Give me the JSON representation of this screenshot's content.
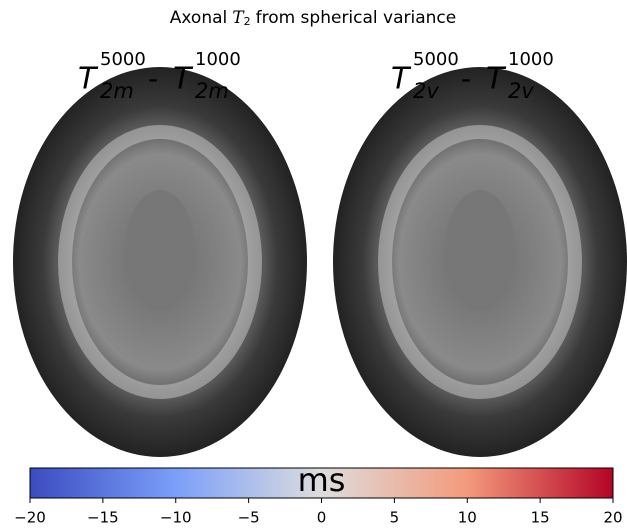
{
  "chart_data": {
    "type": "colorbar",
    "title": {
      "prefix": "Axonal",
      "symbol": "T",
      "subscript": "2",
      "suffix": "from spherical variance"
    },
    "panels": [
      {
        "terms": [
          {
            "base": "T",
            "sub": "2m",
            "sup": "5000"
          },
          {
            "base": "T",
            "sub": "2m",
            "sup": "1000"
          }
        ],
        "operator": "-"
      },
      {
        "terms": [
          {
            "base": "T",
            "sub": "2v",
            "sup": "5000"
          },
          {
            "base": "T",
            "sub": "2v",
            "sup": "1000"
          }
        ],
        "operator": "-"
      }
    ],
    "colorbar": {
      "label": "ms",
      "colormap": [
        "#3b4cc0",
        "#7b9ff9",
        "#dddddd",
        "#f49a7b",
        "#b40426"
      ],
      "xlim": [
        -20,
        20
      ],
      "xticks": [
        {
          "value": -20,
          "label": "−20"
        },
        {
          "value": -15,
          "label": "−15"
        },
        {
          "value": -10,
          "label": "−10"
        },
        {
          "value": -5,
          "label": "−5"
        },
        0,
        5,
        10,
        15,
        20
      ]
    }
  }
}
